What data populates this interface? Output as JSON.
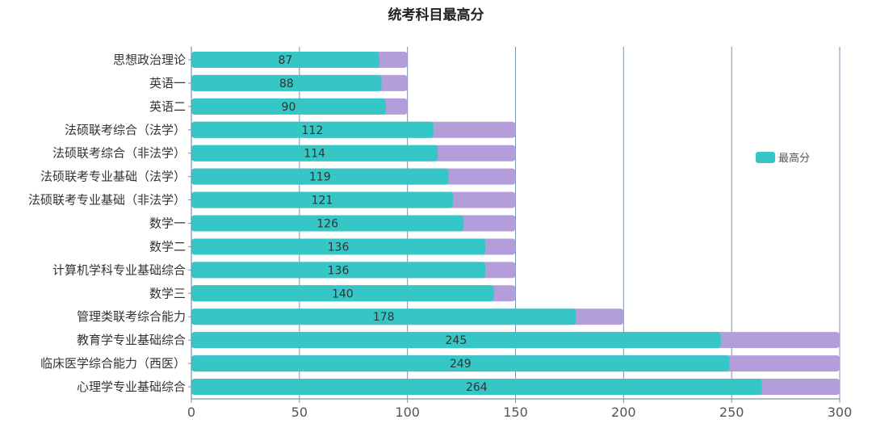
{
  "chart_data": {
    "type": "bar",
    "orientation": "horizontal",
    "title": "统考科目最高分",
    "categories": [
      "思想政治理论",
      "英语一",
      "英语二",
      "法硕联考综合（法学）",
      "法硕联考综合（非法学）",
      "法硕联考专业基础（法学）",
      "法硕联考专业基础（非法学）",
      "数学一",
      "数学二",
      "计算机学科专业基础综合",
      "数学三",
      "管理类联考综合能力",
      "教育学专业基础综合",
      "临床医学综合能力（西医）",
      "心理学专业基础综合"
    ],
    "series": [
      {
        "name": "最高分",
        "color": "#36c6c6",
        "values": [
          87,
          88,
          90,
          112,
          114,
          119,
          121,
          126,
          136,
          136,
          140,
          178,
          245,
          249,
          264
        ]
      }
    ],
    "background_totals": [
      100,
      100,
      100,
      150,
      150,
      150,
      150,
      150,
      150,
      150,
      150,
      200,
      300,
      300,
      300
    ],
    "background_color": "#b39ddb",
    "xlim": [
      0,
      300
    ],
    "x_ticks": [
      0,
      50,
      100,
      150,
      200,
      250,
      300
    ],
    "grid": "vertical",
    "legend_position": "right"
  }
}
